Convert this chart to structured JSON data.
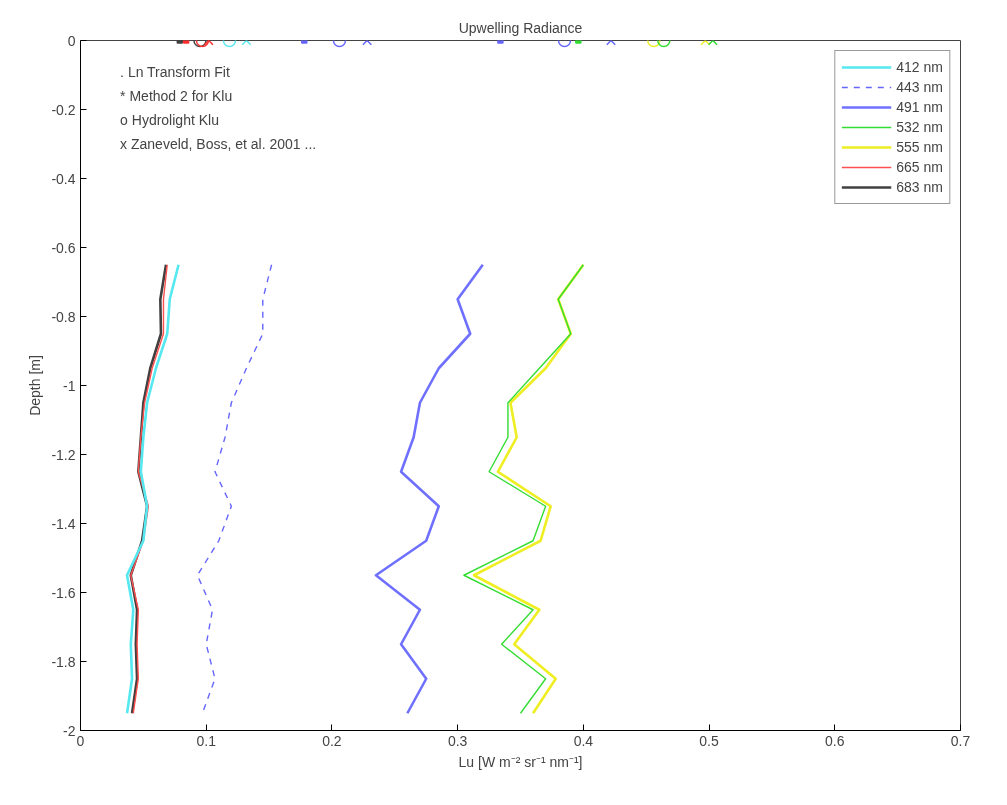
{
  "chart_data": {
    "type": "line",
    "title": "Upwelling Radiance",
    "xlabel": "Lu [W m⁻² sr⁻¹ nm⁻¹]",
    "ylabel": "Depth [m]",
    "xlim": [
      0,
      0.7
    ],
    "ylim": [
      -2,
      0
    ],
    "xticks": [
      0,
      0.1,
      0.2,
      0.3,
      0.4,
      0.5,
      0.6,
      0.7
    ],
    "yticks": [
      -2,
      -1.8,
      -1.6,
      -1.4,
      -1.2,
      -1,
      -0.8,
      -0.6,
      -0.4,
      -0.2,
      0
    ],
    "grid": false,
    "legend": "top right",
    "line_style": "solid",
    "marker": "none",
    "annotations": [
      ". Ln Transform Fit",
      "* Method 2 for Klu",
      "o Hydrolight Klu",
      "x Zaneveld, Boss, et al. 2001 ..."
    ],
    "series": [
      {
        "name": "412 nm",
        "color": "#55e8f0",
        "x": [
          0.078,
          0.071,
          0.069,
          0.06,
          0.053,
          0.05,
          0.048,
          0.053,
          0.05,
          0.037,
          0.042,
          0.04,
          0.041,
          0.037
        ],
        "values": [
          -0.65,
          -0.75,
          -0.85,
          -0.95,
          -1.05,
          -1.15,
          -1.25,
          -1.35,
          -1.45,
          -1.55,
          -1.65,
          -1.75,
          -1.85,
          -1.95
        ]
      },
      {
        "name": "443 nm",
        "color": "#6666ff",
        "line_style": "dashed",
        "x": [
          0.152,
          0.145,
          0.145,
          0.132,
          0.12,
          0.115,
          0.107,
          0.12,
          0.11,
          0.093,
          0.105,
          0.1,
          0.107,
          0.097
        ],
        "values": [
          -0.65,
          -0.75,
          -0.85,
          -0.95,
          -1.05,
          -1.15,
          -1.25,
          -1.35,
          -1.45,
          -1.55,
          -1.65,
          -1.75,
          -1.85,
          -1.95
        ]
      },
      {
        "name": "491 nm",
        "color": "#7070ff",
        "x": [
          0.32,
          0.3,
          0.31,
          0.285,
          0.27,
          0.265,
          0.255,
          0.285,
          0.275,
          0.235,
          0.27,
          0.255,
          0.275,
          0.26
        ],
        "values": [
          -0.65,
          -0.75,
          -0.85,
          -0.95,
          -1.05,
          -1.15,
          -1.25,
          -1.35,
          -1.45,
          -1.55,
          -1.65,
          -1.75,
          -1.85,
          -1.95
        ]
      },
      {
        "name": "532 nm",
        "color": "#33dd33",
        "x": [
          0.4,
          0.38,
          0.39,
          0.365,
          0.34,
          0.34,
          0.325,
          0.37,
          0.36,
          0.305,
          0.36,
          0.335,
          0.37,
          0.35
        ],
        "values": [
          -0.65,
          -0.75,
          -0.85,
          -0.95,
          -1.05,
          -1.15,
          -1.25,
          -1.35,
          -1.45,
          -1.55,
          -1.65,
          -1.75,
          -1.85,
          -1.95
        ]
      },
      {
        "name": "555 nm",
        "color": "#eeee22",
        "x": [
          0.4,
          0.38,
          0.39,
          0.37,
          0.342,
          0.347,
          0.332,
          0.374,
          0.366,
          0.313,
          0.365,
          0.345,
          0.378,
          0.36
        ],
        "values": [
          -0.65,
          -0.75,
          -0.85,
          -0.95,
          -1.05,
          -1.15,
          -1.25,
          -1.35,
          -1.45,
          -1.55,
          -1.65,
          -1.75,
          -1.85,
          -1.95
        ]
      },
      {
        "name": "665 nm",
        "color": "#ff5050",
        "x": [
          0.069,
          0.066,
          0.066,
          0.057,
          0.051,
          0.048,
          0.046,
          0.054,
          0.05,
          0.04,
          0.046,
          0.045,
          0.046,
          0.042
        ],
        "values": [
          -0.65,
          -0.75,
          -0.85,
          -0.95,
          -1.05,
          -1.15,
          -1.25,
          -1.35,
          -1.45,
          -1.55,
          -1.65,
          -1.75,
          -1.85,
          -1.95
        ]
      },
      {
        "name": "683 nm",
        "color": "#404040",
        "x": [
          0.068,
          0.0635,
          0.064,
          0.0555,
          0.05,
          0.048,
          0.046,
          0.053,
          0.049,
          0.04,
          0.045,
          0.044,
          0.045,
          0.041
        ],
        "values": [
          -0.65,
          -0.75,
          -0.85,
          -0.95,
          -1.05,
          -1.15,
          -1.25,
          -1.35,
          -1.45,
          -1.55,
          -1.65,
          -1.75,
          -1.85,
          -1.95
        ]
      },
      {
        "type": "scatter",
        "marker": "square",
        "colors": [
          "#404040",
          "#ff3030",
          "#6666ff",
          "#6666ff",
          "#33dd33"
        ],
        "x": [
          0.079,
          0.084,
          0.178,
          0.334,
          0.396
        ],
        "values": [
          0,
          0,
          0,
          0,
          0
        ]
      },
      {
        "type": "scatter",
        "marker": "cross",
        "colors": [
          "#ff3030",
          "#55e8f0",
          "#6666ff",
          "#6666ff",
          "#eeee22",
          "#33dd33"
        ],
        "x": [
          0.102,
          0.132,
          0.228,
          0.422,
          0.497,
          0.503
        ],
        "values": [
          0,
          0,
          0,
          0,
          0,
          0
        ]
      },
      {
        "type": "scatter",
        "marker": "circle",
        "colors": [
          "#404040",
          "#ff3030",
          "#55e8f0",
          "#6666ff",
          "#6666ff",
          "#eeee22",
          "#33dd33"
        ],
        "x": [
          0.095,
          0.097,
          0.1185,
          0.206,
          0.385,
          0.456,
          0.464
        ],
        "values": [
          0,
          0,
          0,
          0,
          0,
          0,
          0
        ]
      }
    ]
  }
}
